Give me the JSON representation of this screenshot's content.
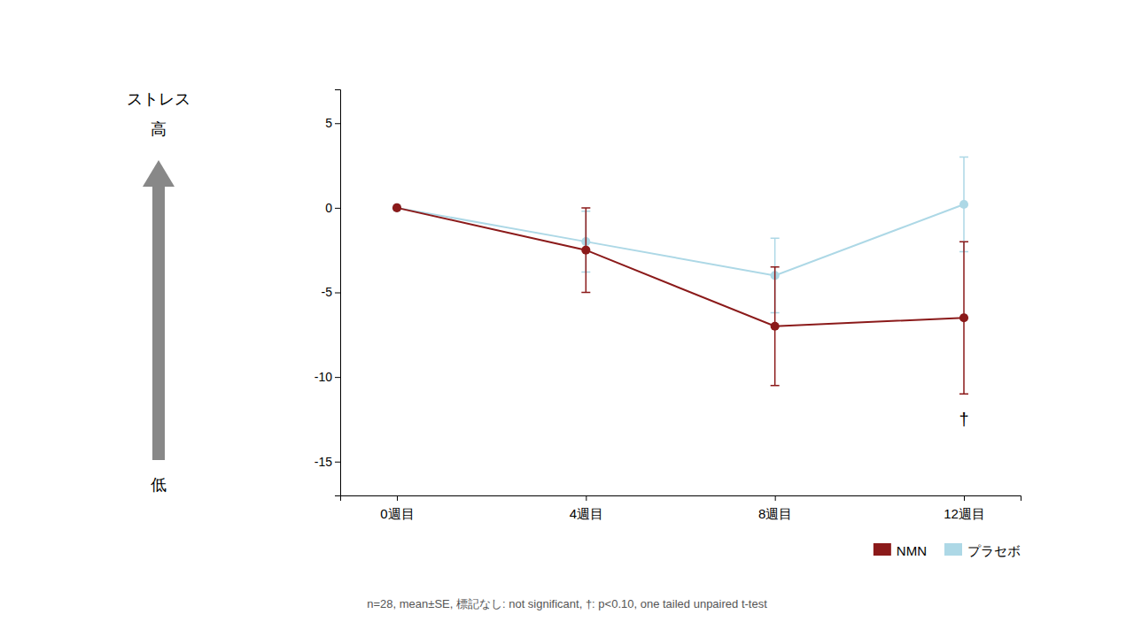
{
  "chart_data": {
    "type": "line",
    "categories": [
      "0週目",
      "4週目",
      "8週目",
      "12週目"
    ],
    "series": [
      {
        "name": "NMN",
        "color": "#8B1A1A",
        "values": [
          0,
          -2.5,
          -7.0,
          -6.5
        ],
        "errors": [
          0,
          2.5,
          3.5,
          4.5
        ],
        "marker": "circle",
        "line_style": "solid"
      },
      {
        "name": "プラセボ",
        "color": "#ADD8E6",
        "values": [
          0,
          -2.0,
          -4.0,
          0.2
        ],
        "errors": [
          0,
          1.8,
          2.2,
          2.8
        ],
        "marker": "circle",
        "line_style": "solid"
      }
    ],
    "ylim": [
      -17,
      7
    ],
    "yticks": [
      5,
      0,
      -5,
      -10,
      -15
    ],
    "ylabel": "ストレス",
    "ylabel_high": "高",
    "ylabel_low": "低",
    "annotations": [
      {
        "text": "†",
        "x": "12週目",
        "y": -12.5
      }
    ],
    "footnote": "n=28, mean±SE, 標記なし: not significant, †: p<0.10, one tailed unpaired t-test",
    "legend": "lower right",
    "grid": false
  }
}
